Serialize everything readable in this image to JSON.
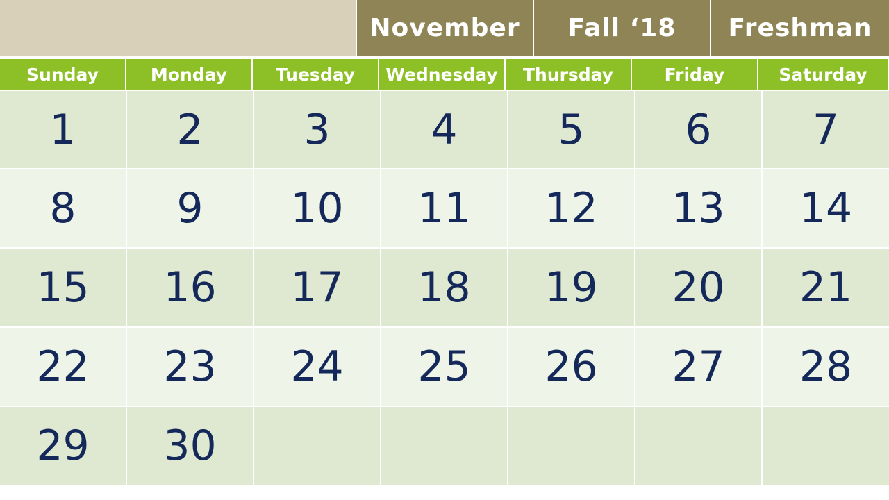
{
  "header": {
    "month": "November",
    "term": "Fall ‘18",
    "class_year": "Freshman"
  },
  "weekdays": [
    "Sunday",
    "Monday",
    "Tuesday",
    "Wednesday",
    "Thursday",
    "Friday",
    "Saturday"
  ],
  "weeks": [
    [
      "1",
      "2",
      "3",
      "4",
      "5",
      "6",
      "7"
    ],
    [
      "8",
      "9",
      "10",
      "11",
      "12",
      "13",
      "14"
    ],
    [
      "15",
      "16",
      "17",
      "18",
      "19",
      "20",
      "21"
    ],
    [
      "22",
      "23",
      "24",
      "25",
      "26",
      "27",
      "28"
    ],
    [
      "29",
      "30",
      "",
      "",
      "",
      "",
      ""
    ]
  ],
  "colors": {
    "header_blank": "#d8d0b8",
    "header_bar": "#8e8455",
    "weekday_bar": "#8dc026",
    "row_dark": "#dfe9d1",
    "row_light": "#eef4e7",
    "date_text": "#14285a"
  }
}
